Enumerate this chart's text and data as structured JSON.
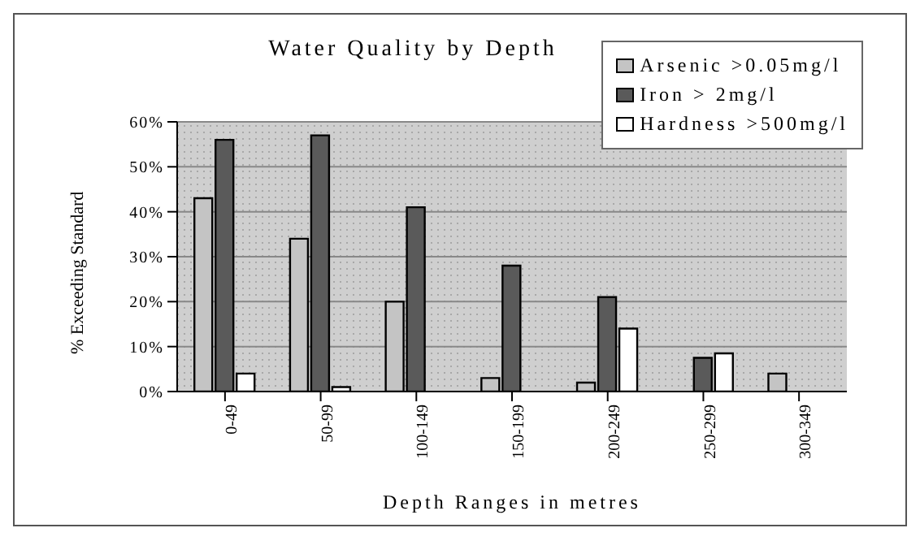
{
  "chart_data": {
    "type": "bar",
    "title": "Water Quality by Depth",
    "xlabel": "Depth Ranges in metres",
    "ylabel": "% Exceeding Standard",
    "categories": [
      "0-49",
      "50-99",
      "100-149",
      "150-199",
      "200-249",
      "250-299",
      "300-349"
    ],
    "series": [
      {
        "name": "Arsenic >0.05mg/l",
        "color": "#c4c4c4",
        "values": [
          43,
          34,
          20,
          3,
          2,
          0,
          4
        ]
      },
      {
        "name": "Iron > 2mg/l",
        "color": "#5a5a5a",
        "values": [
          56,
          57,
          41,
          28,
          21,
          7.5,
          0
        ]
      },
      {
        "name": "Hardness >500mg/l",
        "color": "#ffffff",
        "values": [
          4,
          1,
          0,
          0,
          14,
          8.5,
          0
        ]
      }
    ],
    "ylim": [
      0,
      60
    ],
    "yticks": [
      {
        "value": 0,
        "label": "0%"
      },
      {
        "value": 10,
        "label": "10%"
      },
      {
        "value": 20,
        "label": "20%"
      },
      {
        "value": 30,
        "label": "30%"
      },
      {
        "value": 40,
        "label": "40%"
      },
      {
        "value": 50,
        "label": "50%"
      },
      {
        "value": 60,
        "label": "60%"
      }
    ],
    "grid": "y",
    "legend": "top right"
  }
}
